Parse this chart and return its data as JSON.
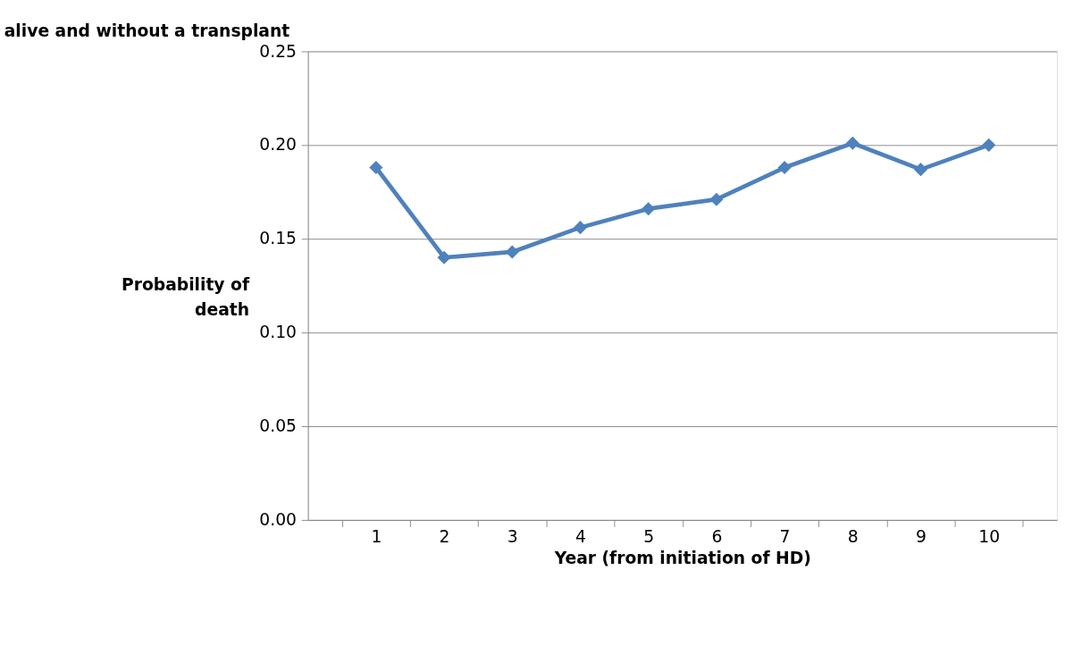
{
  "chart_data": {
    "type": "line",
    "title": "alive and without a transplant",
    "xlabel": "Year (from initiation of HD)",
    "ylabel": "Probability of death",
    "categories": [
      "1",
      "2",
      "3",
      "4",
      "5",
      "6",
      "7",
      "8",
      "9",
      "10"
    ],
    "series": [
      {
        "color": "#4f81bd",
        "values": [
          0.188,
          0.14,
          0.143,
          0.156,
          0.166,
          0.171,
          0.188,
          0.201,
          0.187,
          0.2
        ]
      }
    ],
    "ylim": [
      0,
      0.25
    ],
    "yticks": [
      {
        "value": 0,
        "label": "0.00"
      },
      {
        "value": 0.05,
        "label": "0.05"
      },
      {
        "value": 0.1,
        "label": "0.10"
      },
      {
        "value": 0.15,
        "label": "0.15"
      },
      {
        "value": 0.2,
        "label": "0.20"
      },
      {
        "value": 0.25,
        "label": "0.25"
      }
    ],
    "grid": "y",
    "marker": "diamond",
    "line_style": "solid",
    "legend": false
  }
}
